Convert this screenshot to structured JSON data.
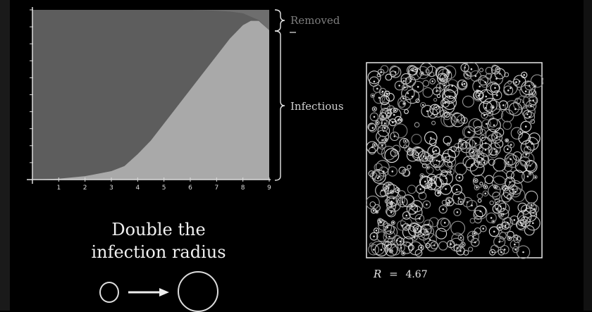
{
  "labels": {
    "removed": "Removed",
    "infectious": "Infectious"
  },
  "caption": {
    "line1": "Double the",
    "line2": "infection radius"
  },
  "simulation": {
    "r_label": "R",
    "r_eq": "=",
    "r_value": "4.67"
  },
  "chart_data": {
    "type": "area",
    "x_ticks": [
      "1",
      "2",
      "3",
      "4",
      "5",
      "6",
      "7",
      "8",
      "9"
    ],
    "xlim": [
      0,
      9
    ],
    "ylim": [
      0,
      1
    ],
    "x": [
      0,
      1,
      2,
      3,
      3.5,
      4,
      4.5,
      5,
      5.5,
      6,
      6.5,
      7,
      7.5,
      8,
      8.3,
      8.6,
      9
    ],
    "series": [
      {
        "name": "Infectious",
        "values": [
          0,
          0.005,
          0.02,
          0.05,
          0.08,
          0.15,
          0.23,
          0.33,
          0.43,
          0.53,
          0.63,
          0.73,
          0.83,
          0.91,
          0.935,
          0.935,
          0.88
        ]
      },
      {
        "name": "Removed",
        "values": [
          0,
          0,
          0,
          0,
          0,
          0,
          0,
          0,
          0,
          0,
          0.002,
          0.005,
          0.01,
          0.02,
          0.04,
          0.06,
          0.12
        ]
      }
    ],
    "colors": {
      "susceptible": "#5d5d5d",
      "infectious": "#a9a9a9",
      "removed": "#6e6e6e"
    }
  }
}
